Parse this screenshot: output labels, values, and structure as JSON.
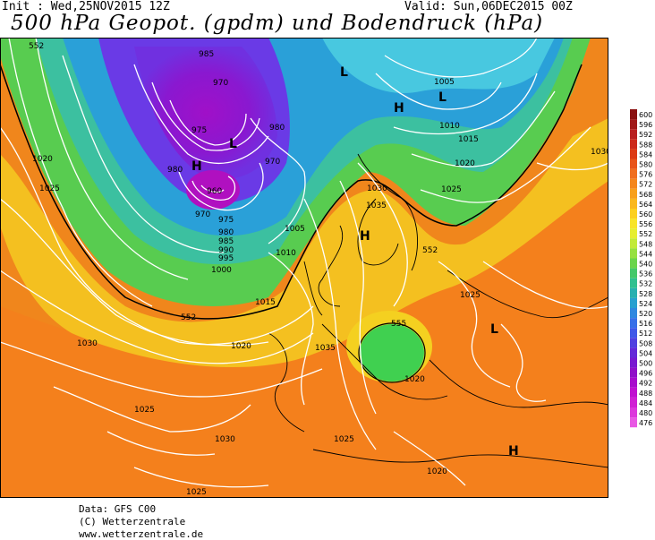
{
  "header": {
    "init": "Init : Wed,25NOV2015 12Z",
    "valid": "Valid: Sun,06DEC2015 00Z",
    "title": "500 hPa Geopot. (gpdm) und Bodendruck (hPa)"
  },
  "footer": {
    "line1": "Data: GFS C00",
    "line2": "(C) Wetterzentrale",
    "line3": "www.wetterzentrale.de"
  },
  "legend": {
    "values": [
      "600",
      "596",
      "592",
      "588",
      "584",
      "580",
      "576",
      "572",
      "568",
      "564",
      "560",
      "556",
      "552",
      "548",
      "544",
      "540",
      "536",
      "532",
      "528",
      "524",
      "520",
      "516",
      "512",
      "508",
      "504",
      "500",
      "496",
      "492",
      "488",
      "484",
      "480",
      "476"
    ],
    "colors": [
      "#8a1010",
      "#a01818",
      "#b82020",
      "#cc2a1c",
      "#dc3a14",
      "#e8541a",
      "#f06e1e",
      "#f4861c",
      "#f8a01c",
      "#fab81e",
      "#fcd020",
      "#f8e428",
      "#e6ee30",
      "#c2ea38",
      "#96e040",
      "#6ad44c",
      "#44c86a",
      "#30c090",
      "#28b0b0",
      "#28a0d0",
      "#3088e0",
      "#3870e8",
      "#4058e8",
      "#5040e0",
      "#6428d8",
      "#7818d0",
      "#9010c8",
      "#a80ccc",
      "#c010d0",
      "#d020d4",
      "#dc38dc",
      "#e858e4"
    ]
  },
  "map": {
    "pressure_labels": [
      "552",
      "1020",
      "1025",
      "985",
      "970",
      "975",
      "980",
      "970",
      "980",
      "960",
      "H",
      "L",
      "970",
      "975",
      "980",
      "985",
      "990",
      "995",
      "1000",
      "1005",
      "1010",
      "L",
      "H",
      "L",
      "1005",
      "1010",
      "1015",
      "1020",
      "1025",
      "1030",
      "1035",
      "H",
      "552",
      "1025",
      "L",
      "552",
      "555",
      "1020",
      "1015",
      "1020",
      "1035",
      "1030",
      "1025",
      "1030",
      "1025",
      "1025",
      "1020",
      "H",
      "1030",
      "1030",
      "1030"
    ],
    "surface_pressure_unit": "hPa",
    "geopotential_unit": "gpdm"
  }
}
